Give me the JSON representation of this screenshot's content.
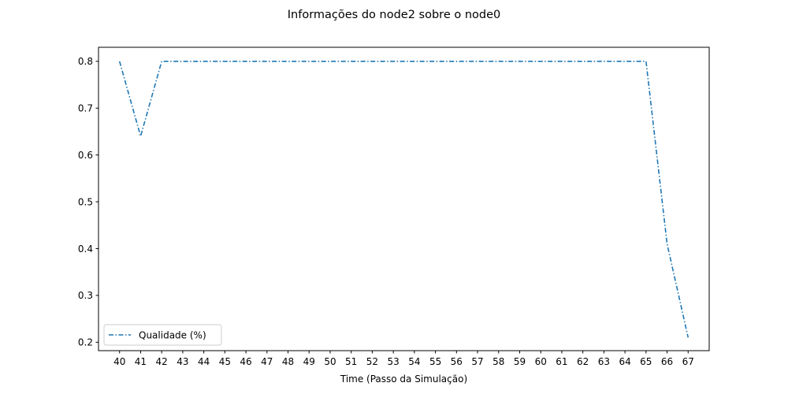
{
  "chart_data": {
    "type": "line",
    "title": "Informações do node2 sobre o node0",
    "xlabel": "Time (Passo da Simulação)",
    "ylabel": "",
    "xlim": [
      39.0,
      68.0
    ],
    "ylim": [
      0.182,
      0.83
    ],
    "x": [
      40,
      41,
      42,
      43,
      44,
      45,
      46,
      47,
      48,
      49,
      50,
      51,
      52,
      53,
      54,
      55,
      56,
      57,
      58,
      59,
      60,
      61,
      62,
      63,
      64,
      65,
      66,
      67
    ],
    "x_ticks": [
      "40",
      "41",
      "42",
      "43",
      "44",
      "45",
      "46",
      "47",
      "48",
      "49",
      "50",
      "51",
      "52",
      "53",
      "54",
      "55",
      "56",
      "57",
      "58",
      "59",
      "60",
      "61",
      "62",
      "63",
      "64",
      "65",
      "66",
      "67"
    ],
    "y_ticks": [
      "0.2",
      "0.3",
      "0.4",
      "0.5",
      "0.6",
      "0.7",
      "0.8"
    ],
    "y_tick_values": [
      0.2,
      0.3,
      0.4,
      0.5,
      0.6,
      0.7,
      0.8
    ],
    "series": [
      {
        "name": "Qualidade (%)",
        "color": "#1f77b4",
        "line_style": "dash-dot",
        "values": [
          0.8,
          0.64,
          0.8,
          0.8,
          0.8,
          0.8,
          0.8,
          0.8,
          0.8,
          0.8,
          0.8,
          0.8,
          0.8,
          0.8,
          0.8,
          0.8,
          0.8,
          0.8,
          0.8,
          0.8,
          0.8,
          0.8,
          0.8,
          0.8,
          0.8,
          0.8,
          0.41,
          0.21
        ]
      }
    ],
    "grid": false,
    "legend_position": "lower-left"
  }
}
